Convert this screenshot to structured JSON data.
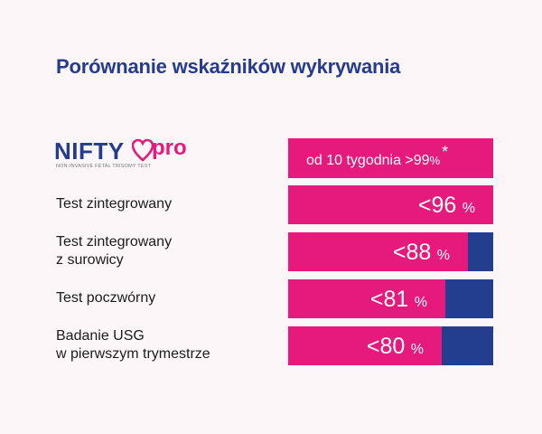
{
  "title": "Porównanie wskaźników wykrywania",
  "logo": {
    "word": "NIFTY",
    "suffix": "pro",
    "subtitle": "NON-INVASIVE FETAL TRISOMY TEST"
  },
  "colors": {
    "accent": "#e6197d",
    "brand": "#233d8f"
  },
  "nifty_row": {
    "prefix": "od 10 tygodnia >99",
    "unit": "%",
    "mark": "*"
  },
  "rows": [
    {
      "label_lines": [
        "Test zintegrowany"
      ],
      "display": "<96",
      "unit": "%"
    },
    {
      "label_lines": [
        "Test zintegrowany",
        "z surowicy"
      ],
      "display": "<88",
      "unit": "%"
    },
    {
      "label_lines": [
        "Test poczwórny"
      ],
      "display": "<81",
      "unit": "%"
    },
    {
      "label_lines": [
        "Badanie USG",
        "w pierwszym trymestrze"
      ],
      "display": "<80",
      "unit": "%"
    }
  ],
  "chart_data": {
    "type": "bar",
    "orientation": "horizontal",
    "title": "Porównanie wskaźników wykrywania",
    "categories": [
      "NIFTY pro",
      "Test zintegrowany",
      "Test zintegrowany z surowicy",
      "Test poczwórny",
      "Badanie USG w pierwszym trymestrze"
    ],
    "values": [
      99,
      96,
      88,
      81,
      80
    ],
    "xlim": [
      0,
      100
    ],
    "unit": "%"
  }
}
